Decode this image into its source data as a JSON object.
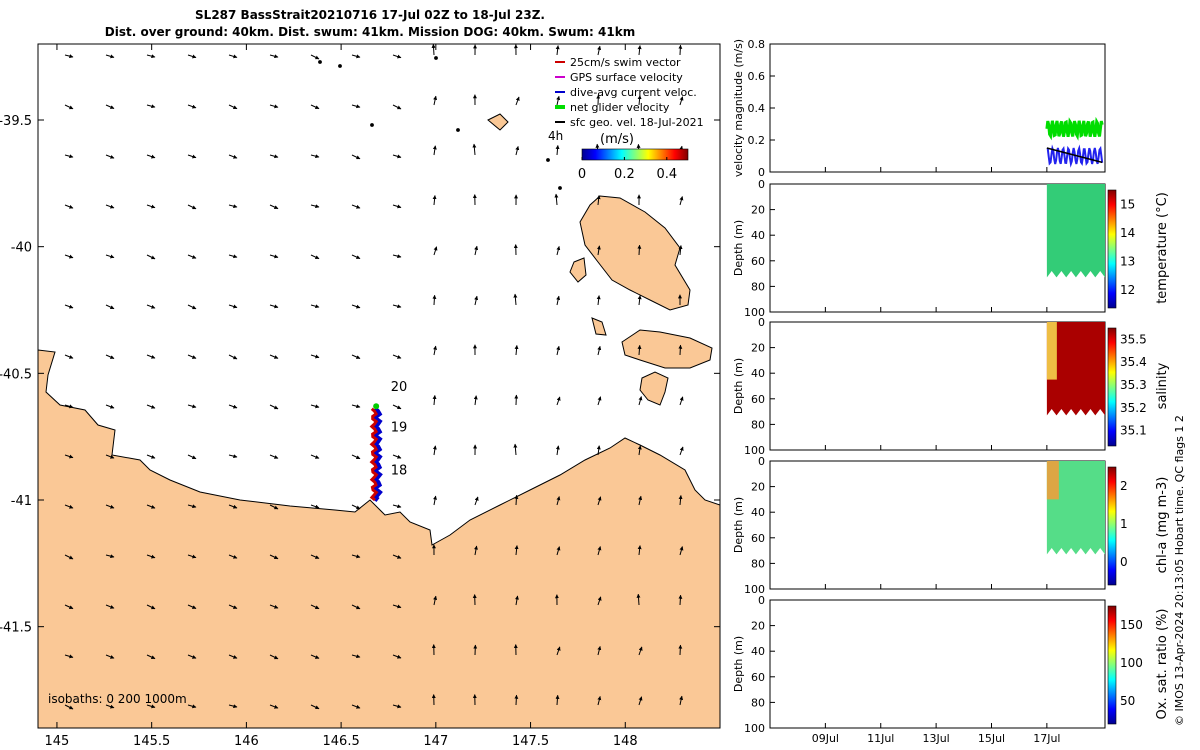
{
  "chart_data": {
    "type": "map",
    "title_line1": "SL287 BassStrait20210716 17-Jul 02Z to 18-Jul 23Z.",
    "title_line2": "Dist. over ground: 40km. Dist. swum: 41km. Mission DOG: 40km. Swum: 41km",
    "map": {
      "xlim": [
        144.9,
        148.5
      ],
      "ylim": [
        -41.9,
        -39.2
      ],
      "x_ticks": [
        "145",
        "145.5",
        "146",
        "146.5",
        "147",
        "147.5",
        "148"
      ],
      "x_tick_values": [
        145,
        145.5,
        146,
        146.5,
        147,
        147.5,
        148
      ],
      "y_ticks": [
        "-39.5",
        "-40",
        "-40.5",
        "-41",
        "-41.5"
      ],
      "y_tick_values": [
        -39.5,
        -40,
        -40.5,
        -41,
        -41.5
      ],
      "day_labels": [
        {
          "text": "20",
          "lon": 146.72,
          "lat": -40.55
        },
        {
          "text": "19",
          "lon": 146.72,
          "lat": -40.71
        },
        {
          "text": "18",
          "lon": 146.72,
          "lat": -40.88
        }
      ],
      "hour_label": "4h",
      "isobaths_text": "isobaths: 0   200  1000m",
      "legend": [
        {
          "label": "25cm/s swim vector",
          "color": "#cc0000"
        },
        {
          "label": "GPS surface velocity",
          "color": "#cc00cc"
        },
        {
          "label": "dive-avg current veloc.",
          "color": "#0000cc"
        },
        {
          "label": "net glider velocity",
          "color": "#00dd00"
        },
        {
          "label": "sfc geo. vel. 18-Jul-2021",
          "color": "#000000"
        }
      ],
      "colorbar_unit": "(m/s)",
      "colorbar_ticks": [
        "0",
        "0.2",
        "0.4"
      ],
      "land_color": "#fac896"
    },
    "panels": [
      {
        "ylabel": "velocity magnitude (m/s)",
        "y_ticks": [
          "0",
          "0.2",
          "0.4",
          "0.6",
          "0.8"
        ]
      },
      {
        "ylabel": "Depth (m)",
        "y_ticks": [
          "0",
          "20",
          "40",
          "60",
          "80",
          "100"
        ],
        "cbar_label": "temperature (°C)",
        "cbar_ticks": [
          "12",
          "13",
          "14",
          "15"
        ]
      },
      {
        "ylabel": "Depth (m)",
        "y_ticks": [
          "0",
          "20",
          "40",
          "60",
          "80",
          "100"
        ],
        "cbar_label": "salinity",
        "cbar_ticks": [
          "35.1",
          "35.2",
          "35.3",
          "35.4",
          "35.5"
        ]
      },
      {
        "ylabel": "Depth (m)",
        "y_ticks": [
          "0",
          "20",
          "40",
          "60",
          "80",
          "100"
        ],
        "cbar_label": "chl-a (mg m-3)",
        "cbar_ticks": [
          "0",
          "1",
          "2"
        ]
      },
      {
        "ylabel": "Depth (m)",
        "y_ticks": [
          "0",
          "20",
          "40",
          "60",
          "80",
          "100"
        ],
        "cbar_label": "Ox. sat. ratio (%)",
        "cbar_ticks": [
          "50",
          "100",
          "150"
        ]
      }
    ],
    "time_ticks": [
      "09Jul",
      "11Jul",
      "13Jul",
      "15Jul",
      "17Jul"
    ],
    "credit": "© IMOS 13-Apr-2024 20:13:05 Hobart time. QC flags 1  2"
  }
}
